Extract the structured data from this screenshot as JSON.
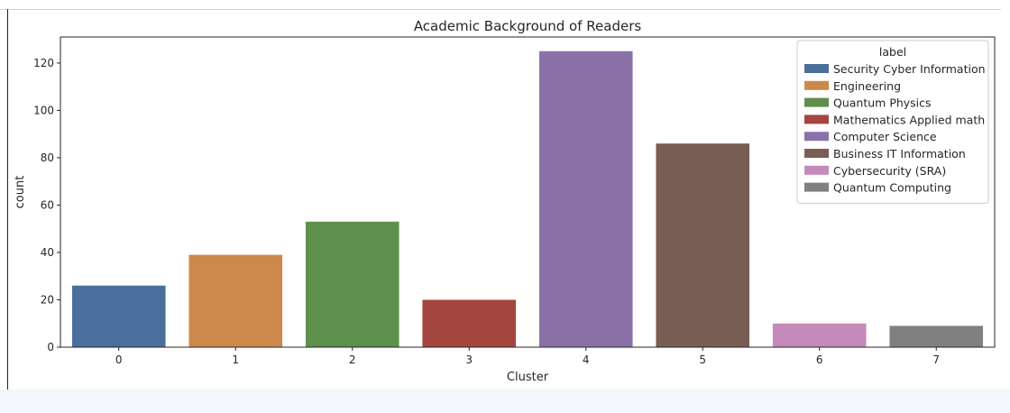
{
  "chart_data": {
    "type": "bar",
    "title": "Academic Background of Readers",
    "xlabel": "Cluster",
    "ylabel": "count",
    "categories": [
      "0",
      "1",
      "2",
      "3",
      "4",
      "5",
      "6",
      "7"
    ],
    "values": [
      26,
      39,
      53,
      20,
      125,
      86,
      10,
      9
    ],
    "colors": [
      "#4a6f9c",
      "#cd894b",
      "#5f8f4c",
      "#a4463f",
      "#8a72a9",
      "#785e54",
      "#c48abb",
      "#808080"
    ],
    "ylim": [
      0,
      131
    ],
    "yticks": [
      0,
      20,
      40,
      60,
      80,
      100,
      120
    ],
    "grid": false,
    "legend": {
      "title": "label",
      "placement": "upper-right",
      "entries": [
        "Security Cyber Information",
        "Engineering",
        "Quantum Physics",
        "Mathematics Applied math",
        "Computer Science",
        "Business IT Information",
        "Cybersecurity (SRA)",
        "Quantum Computing"
      ]
    }
  }
}
